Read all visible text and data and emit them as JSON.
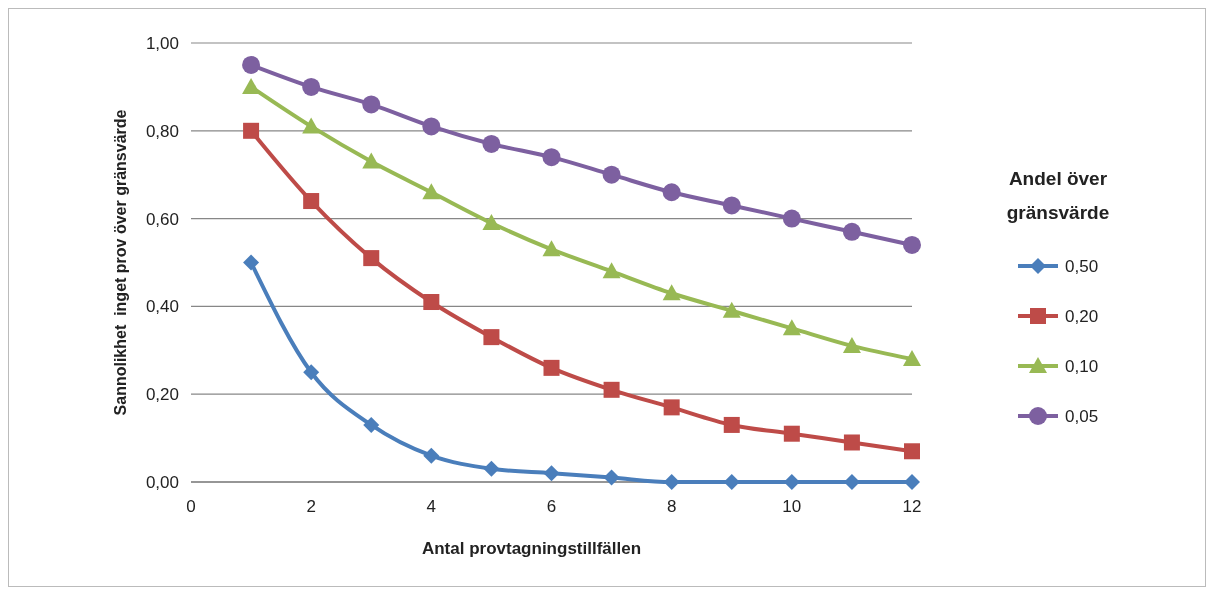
{
  "chart_data": {
    "type": "line",
    "xlabel": "Antal provtagningstillfällen",
    "ylabel": "Sannolikhet  inget prov över gränsvärde",
    "legend_title": "Andel över gränsvärde",
    "legend": "right",
    "grid": "y",
    "line_style": "solid",
    "x": [
      1,
      2,
      3,
      4,
      5,
      6,
      7,
      8,
      9,
      10,
      11,
      12
    ],
    "xlim": [
      0,
      12
    ],
    "xticks": [
      0,
      2,
      4,
      6,
      8,
      10,
      12
    ],
    "ylim": [
      0,
      1
    ],
    "yticks": [
      {
        "value": 0,
        "label": "0,00"
      },
      {
        "value": 0.2,
        "label": "0,20"
      },
      {
        "value": 0.4,
        "label": "0,40"
      },
      {
        "value": 0.6,
        "label": "0,60"
      },
      {
        "value": 0.8,
        "label": "0,80"
      },
      {
        "value": 1,
        "label": "1,00"
      }
    ],
    "series": [
      {
        "name": "0,50",
        "color": "#4a7ebb",
        "marker": "diamond",
        "values": [
          0.5,
          0.25,
          0.13,
          0.06,
          0.03,
          0.02,
          0.01,
          0.0,
          0.0,
          0.0,
          0.0,
          0.0
        ]
      },
      {
        "name": "0,20",
        "color": "#be4b48",
        "marker": "square",
        "values": [
          0.8,
          0.64,
          0.51,
          0.41,
          0.33,
          0.26,
          0.21,
          0.17,
          0.13,
          0.11,
          0.09,
          0.07
        ]
      },
      {
        "name": "0,10",
        "color": "#98b954",
        "marker": "triangle",
        "values": [
          0.9,
          0.81,
          0.73,
          0.66,
          0.59,
          0.53,
          0.48,
          0.43,
          0.39,
          0.35,
          0.31,
          0.28
        ]
      },
      {
        "name": "0,05",
        "color": "#7d60a0",
        "marker": "circle",
        "values": [
          0.95,
          0.9,
          0.86,
          0.81,
          0.77,
          0.74,
          0.7,
          0.66,
          0.63,
          0.6,
          0.57,
          0.54
        ]
      }
    ]
  }
}
